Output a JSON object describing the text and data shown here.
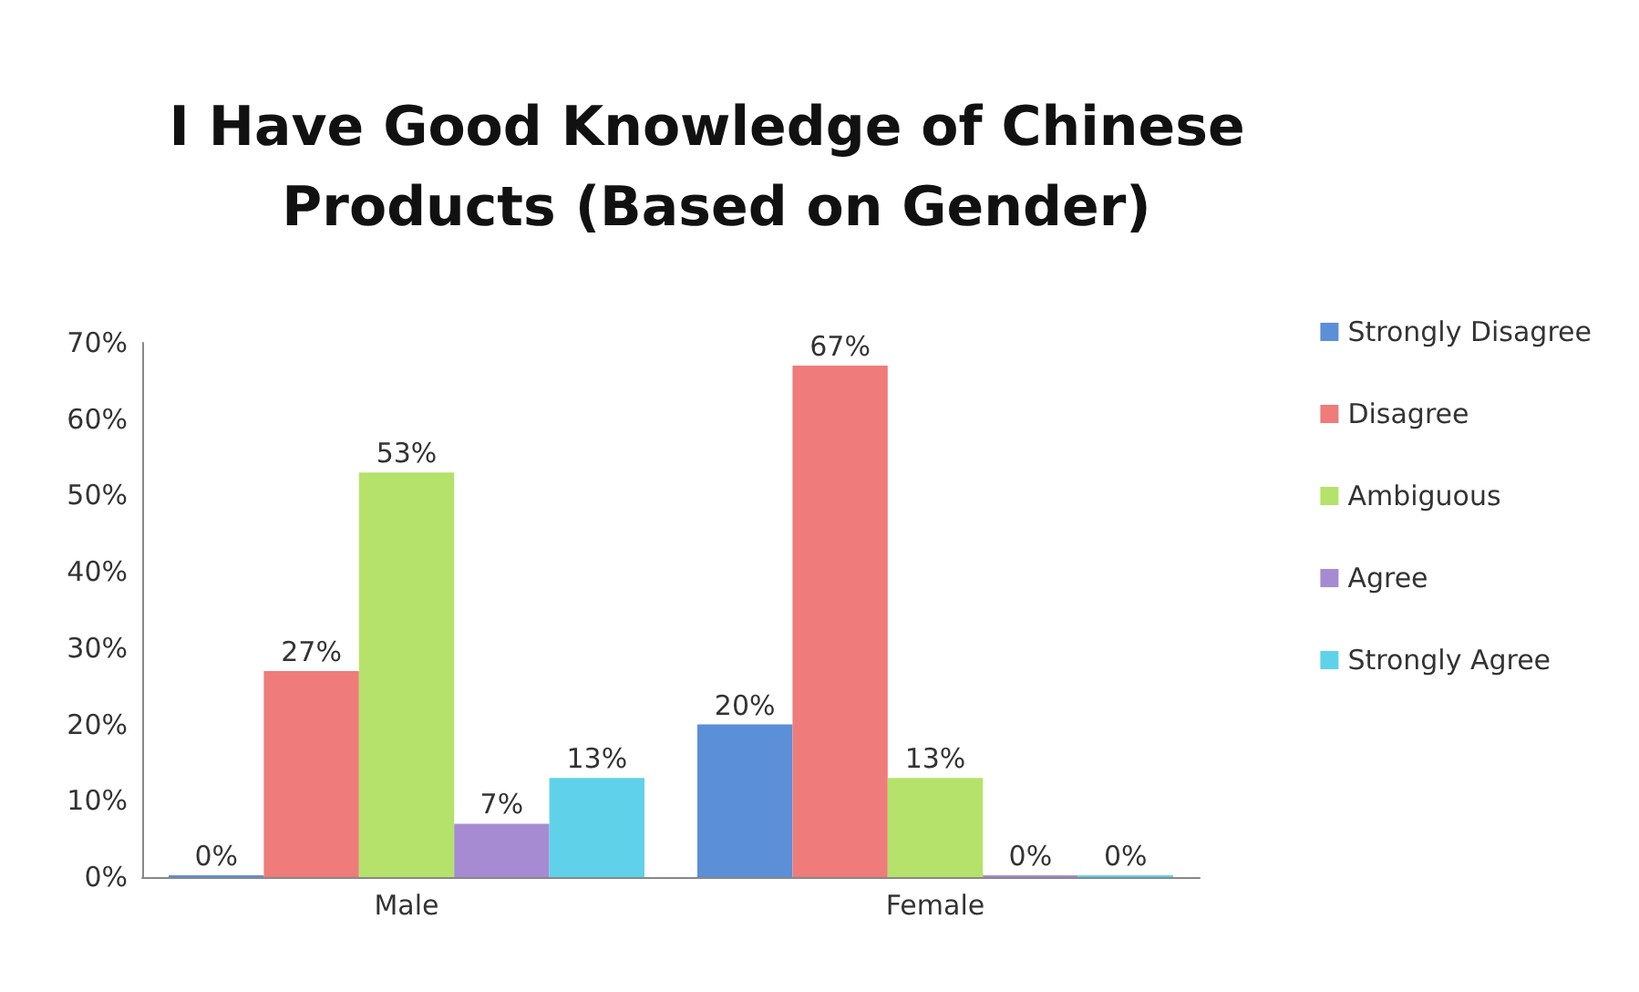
{
  "chart_data": {
    "type": "bar",
    "title": "I Have Good Knowledge of Chinese Products (Based on Gender)",
    "categories": [
      "Male",
      "Female"
    ],
    "series": [
      {
        "name": "Strongly Disagree",
        "color": "#5b8fd8",
        "values": [
          0,
          20
        ],
        "value_labels": [
          "0%",
          "20%"
        ]
      },
      {
        "name": "Disagree",
        "color": "#ef7b7b",
        "values": [
          27,
          67
        ],
        "value_labels": [
          "27%",
          "67%"
        ]
      },
      {
        "name": "Ambiguous",
        "color": "#b4e26a",
        "values": [
          53,
          13
        ],
        "value_labels": [
          "53%",
          "13%"
        ]
      },
      {
        "name": "Agree",
        "color": "#a68bd2",
        "values": [
          7,
          0
        ],
        "value_labels": [
          "7%",
          "0%"
        ]
      },
      {
        "name": "Strongly Agree",
        "color": "#5fd2ea",
        "values": [
          13,
          0
        ],
        "value_labels": [
          "13%",
          "0%"
        ]
      }
    ],
    "ylim": [
      0,
      70
    ],
    "yticks": [
      {
        "value": 0,
        "label": "0%"
      },
      {
        "value": 10,
        "label": "10%"
      },
      {
        "value": 20,
        "label": "20%"
      },
      {
        "value": 30,
        "label": "30%"
      },
      {
        "value": 40,
        "label": "40%"
      },
      {
        "value": 50,
        "label": "50%"
      },
      {
        "value": 60,
        "label": "60%"
      },
      {
        "value": 70,
        "label": "70%"
      }
    ],
    "grid": false,
    "legend": "right"
  }
}
